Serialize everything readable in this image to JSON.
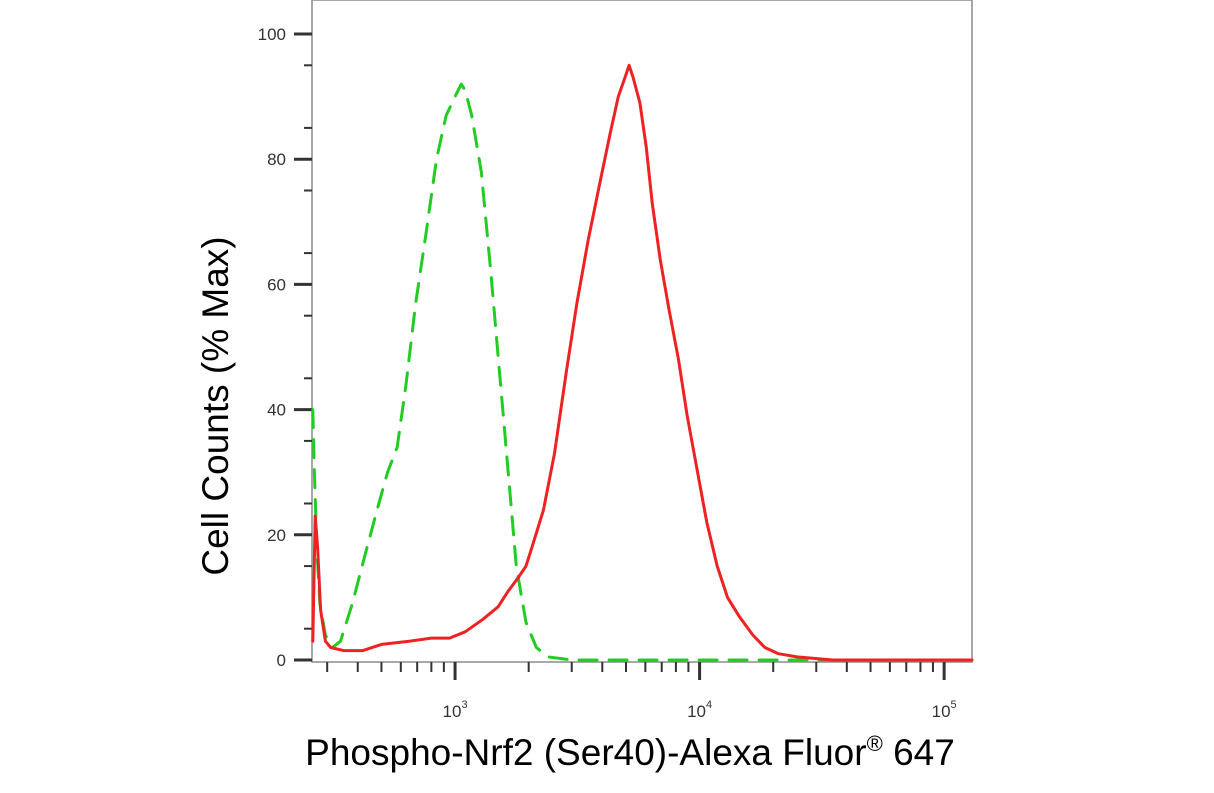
{
  "chart_data": {
    "type": "line",
    "x_scale": "log",
    "xlabel": {
      "main": "Phospho-Nrf2 (Ser40)-Alexa Fluor",
      "superscript": "®",
      "suffix": " 647"
    },
    "ylabel": "Cell Counts (% Max)",
    "xlim": [
      260,
      130000
    ],
    "ylim": [
      0,
      100
    ],
    "x_ticks": [
      {
        "value": 1000,
        "base": "10",
        "exp": "3"
      },
      {
        "value": 10000,
        "base": "10",
        "exp": "4"
      },
      {
        "value": 100000,
        "base": "10",
        "exp": "5"
      }
    ],
    "y_ticks": [
      {
        "value": 0,
        "label": "0"
      },
      {
        "value": 20,
        "label": "20"
      },
      {
        "value": 40,
        "label": "40"
      },
      {
        "value": 60,
        "label": "60"
      },
      {
        "value": 80,
        "label": "80"
      },
      {
        "value": 100,
        "label": "100"
      }
    ],
    "grid": false,
    "series": [
      {
        "style": "dashed",
        "color": "#22cc22",
        "points": [
          [
            262,
            40
          ],
          [
            266,
            30
          ],
          [
            272,
            18
          ],
          [
            280,
            9
          ],
          [
            295,
            4
          ],
          [
            315,
            2
          ],
          [
            340,
            3
          ],
          [
            380,
            9
          ],
          [
            430,
            17
          ],
          [
            480,
            24
          ],
          [
            530,
            30
          ],
          [
            580,
            34
          ],
          [
            630,
            44
          ],
          [
            690,
            57
          ],
          [
            760,
            68
          ],
          [
            840,
            80
          ],
          [
            920,
            87
          ],
          [
            1000,
            90
          ],
          [
            1060,
            92
          ],
          [
            1100,
            91
          ],
          [
            1170,
            87
          ],
          [
            1280,
            78
          ],
          [
            1400,
            62
          ],
          [
            1520,
            46
          ],
          [
            1650,
            30
          ],
          [
            1780,
            15
          ],
          [
            1950,
            6
          ],
          [
            2150,
            2
          ],
          [
            2400,
            0.5
          ],
          [
            3000,
            0
          ],
          [
            10000,
            0
          ],
          [
            100000,
            0
          ],
          [
            130000,
            0
          ]
        ]
      },
      {
        "style": "solid",
        "color": "#ee2222",
        "points": [
          [
            262,
            3
          ],
          [
            268,
            23
          ],
          [
            274,
            18
          ],
          [
            282,
            8
          ],
          [
            295,
            3
          ],
          [
            310,
            2
          ],
          [
            350,
            1.5
          ],
          [
            420,
            1.5
          ],
          [
            500,
            2.5
          ],
          [
            650,
            3
          ],
          [
            800,
            3.5
          ],
          [
            950,
            3.5
          ],
          [
            1100,
            4.5
          ],
          [
            1300,
            6.5
          ],
          [
            1500,
            8.5
          ],
          [
            1650,
            11
          ],
          [
            1800,
            13
          ],
          [
            1950,
            15
          ],
          [
            2100,
            19
          ],
          [
            2300,
            24
          ],
          [
            2550,
            33
          ],
          [
            2850,
            46
          ],
          [
            3150,
            57
          ],
          [
            3500,
            67
          ],
          [
            3900,
            76
          ],
          [
            4300,
            84
          ],
          [
            4650,
            90
          ],
          [
            4950,
            93
          ],
          [
            5150,
            95
          ],
          [
            5350,
            93
          ],
          [
            5700,
            89
          ],
          [
            6050,
            82
          ],
          [
            6400,
            73
          ],
          [
            6900,
            64
          ],
          [
            7500,
            56
          ],
          [
            8200,
            48
          ],
          [
            8900,
            39
          ],
          [
            9700,
            31
          ],
          [
            10700,
            22
          ],
          [
            11800,
            15
          ],
          [
            13000,
            10
          ],
          [
            14500,
            7
          ],
          [
            16500,
            4
          ],
          [
            18500,
            2
          ],
          [
            21000,
            1
          ],
          [
            25000,
            0.5
          ],
          [
            35000,
            0
          ],
          [
            100000,
            0
          ],
          [
            130000,
            0
          ]
        ]
      }
    ]
  }
}
